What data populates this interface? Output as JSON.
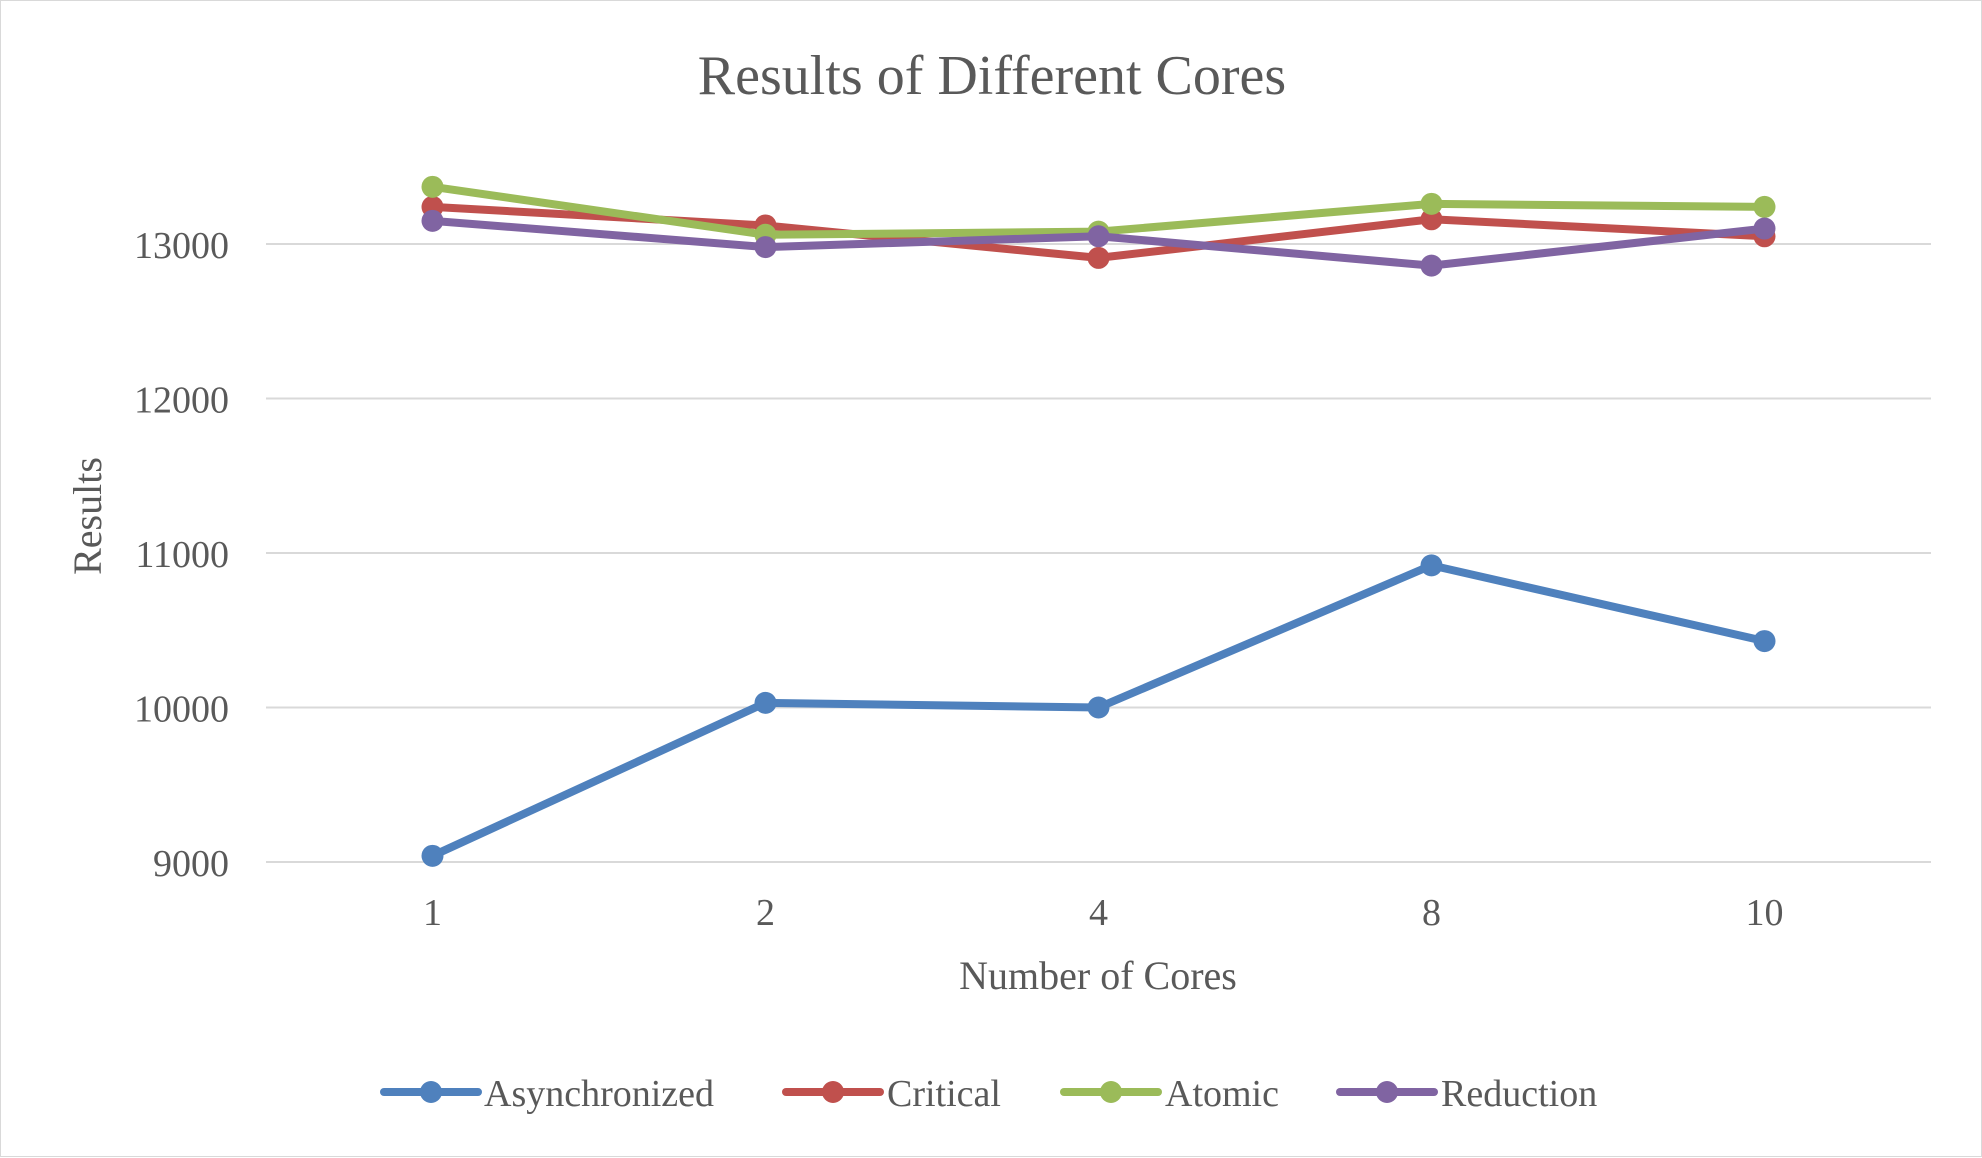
{
  "chart_data": {
    "type": "line",
    "title": "Results of Different Cores",
    "xlabel": "Number of Cores",
    "ylabel": "Results",
    "categories": [
      "1",
      "2",
      "4",
      "8",
      "10"
    ],
    "ylim": [
      9000,
      13000
    ],
    "yticks": [
      "9000",
      "10000",
      "11000",
      "12000",
      "13000"
    ],
    "grid": true,
    "legend_position": "bottom",
    "series": [
      {
        "name": "Asynchronized",
        "color": "#4f81bd",
        "values": [
          9040,
          10030,
          10000,
          10920,
          10430
        ]
      },
      {
        "name": "Critical",
        "color": "#c0504d",
        "values": [
          13240,
          13120,
          12910,
          13160,
          13050
        ]
      },
      {
        "name": "Atomic",
        "color": "#9bbb59",
        "values": [
          13370,
          13060,
          13080,
          13260,
          13240
        ]
      },
      {
        "name": "Reduction",
        "color": "#8064a2",
        "values": [
          13150,
          12980,
          13050,
          12860,
          13100
        ]
      }
    ]
  }
}
